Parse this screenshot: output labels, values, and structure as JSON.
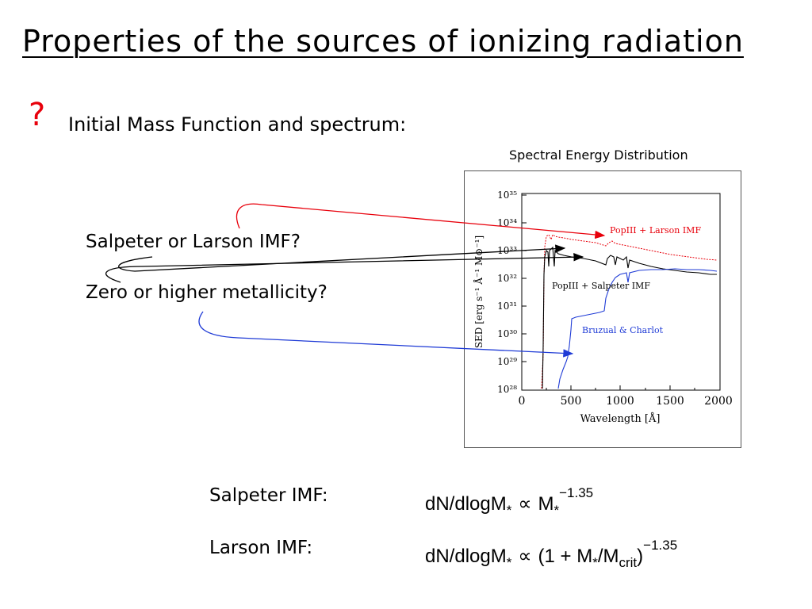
{
  "slide": {
    "title": "Properties of the sources of ionizing radiation",
    "bullet_symbol": "?",
    "bullet_text": "Initial Mass Function and spectrum:",
    "questions": [
      "Salpeter or Larson IMF?",
      "Zero or higher metallicity?"
    ]
  },
  "figure": {
    "caption": "Spectral Energy Distribution",
    "y_axis_label": "SED [erg s⁻¹ Å⁻¹ M⊙⁻¹]",
    "x_axis_label": "Wavelength [Å]",
    "y_ticks": [
      "10³⁵",
      "10³⁴",
      "10³³",
      "10³²",
      "10³¹",
      "10³⁰",
      "10²⁹",
      "10²⁸"
    ],
    "x_ticks": [
      "0",
      "500",
      "1000",
      "1500",
      "2000"
    ],
    "curve_labels": {
      "larson": "PopIII + Larson IMF",
      "salpeter": "PopIII + Salpeter IMF",
      "bruzual": "Bruzual & Charlot"
    }
  },
  "colors": {
    "red": "#e8000b",
    "blue": "#1f3bd6",
    "black": "#000000"
  },
  "equations": {
    "salpeter": {
      "label": "Salpeter IMF:",
      "lhs": "dN/dlogM",
      "star": "*",
      "prop": "∝",
      "rhs": "M",
      "exponent": "−1.35"
    },
    "larson": {
      "label": "Larson IMF:",
      "lhs": "dN/dlogM",
      "star": "*",
      "prop": "∝",
      "open": "(1 + M",
      "slash": "/M",
      "crit": "crit",
      "close": ")",
      "exponent": "−1.35"
    }
  }
}
